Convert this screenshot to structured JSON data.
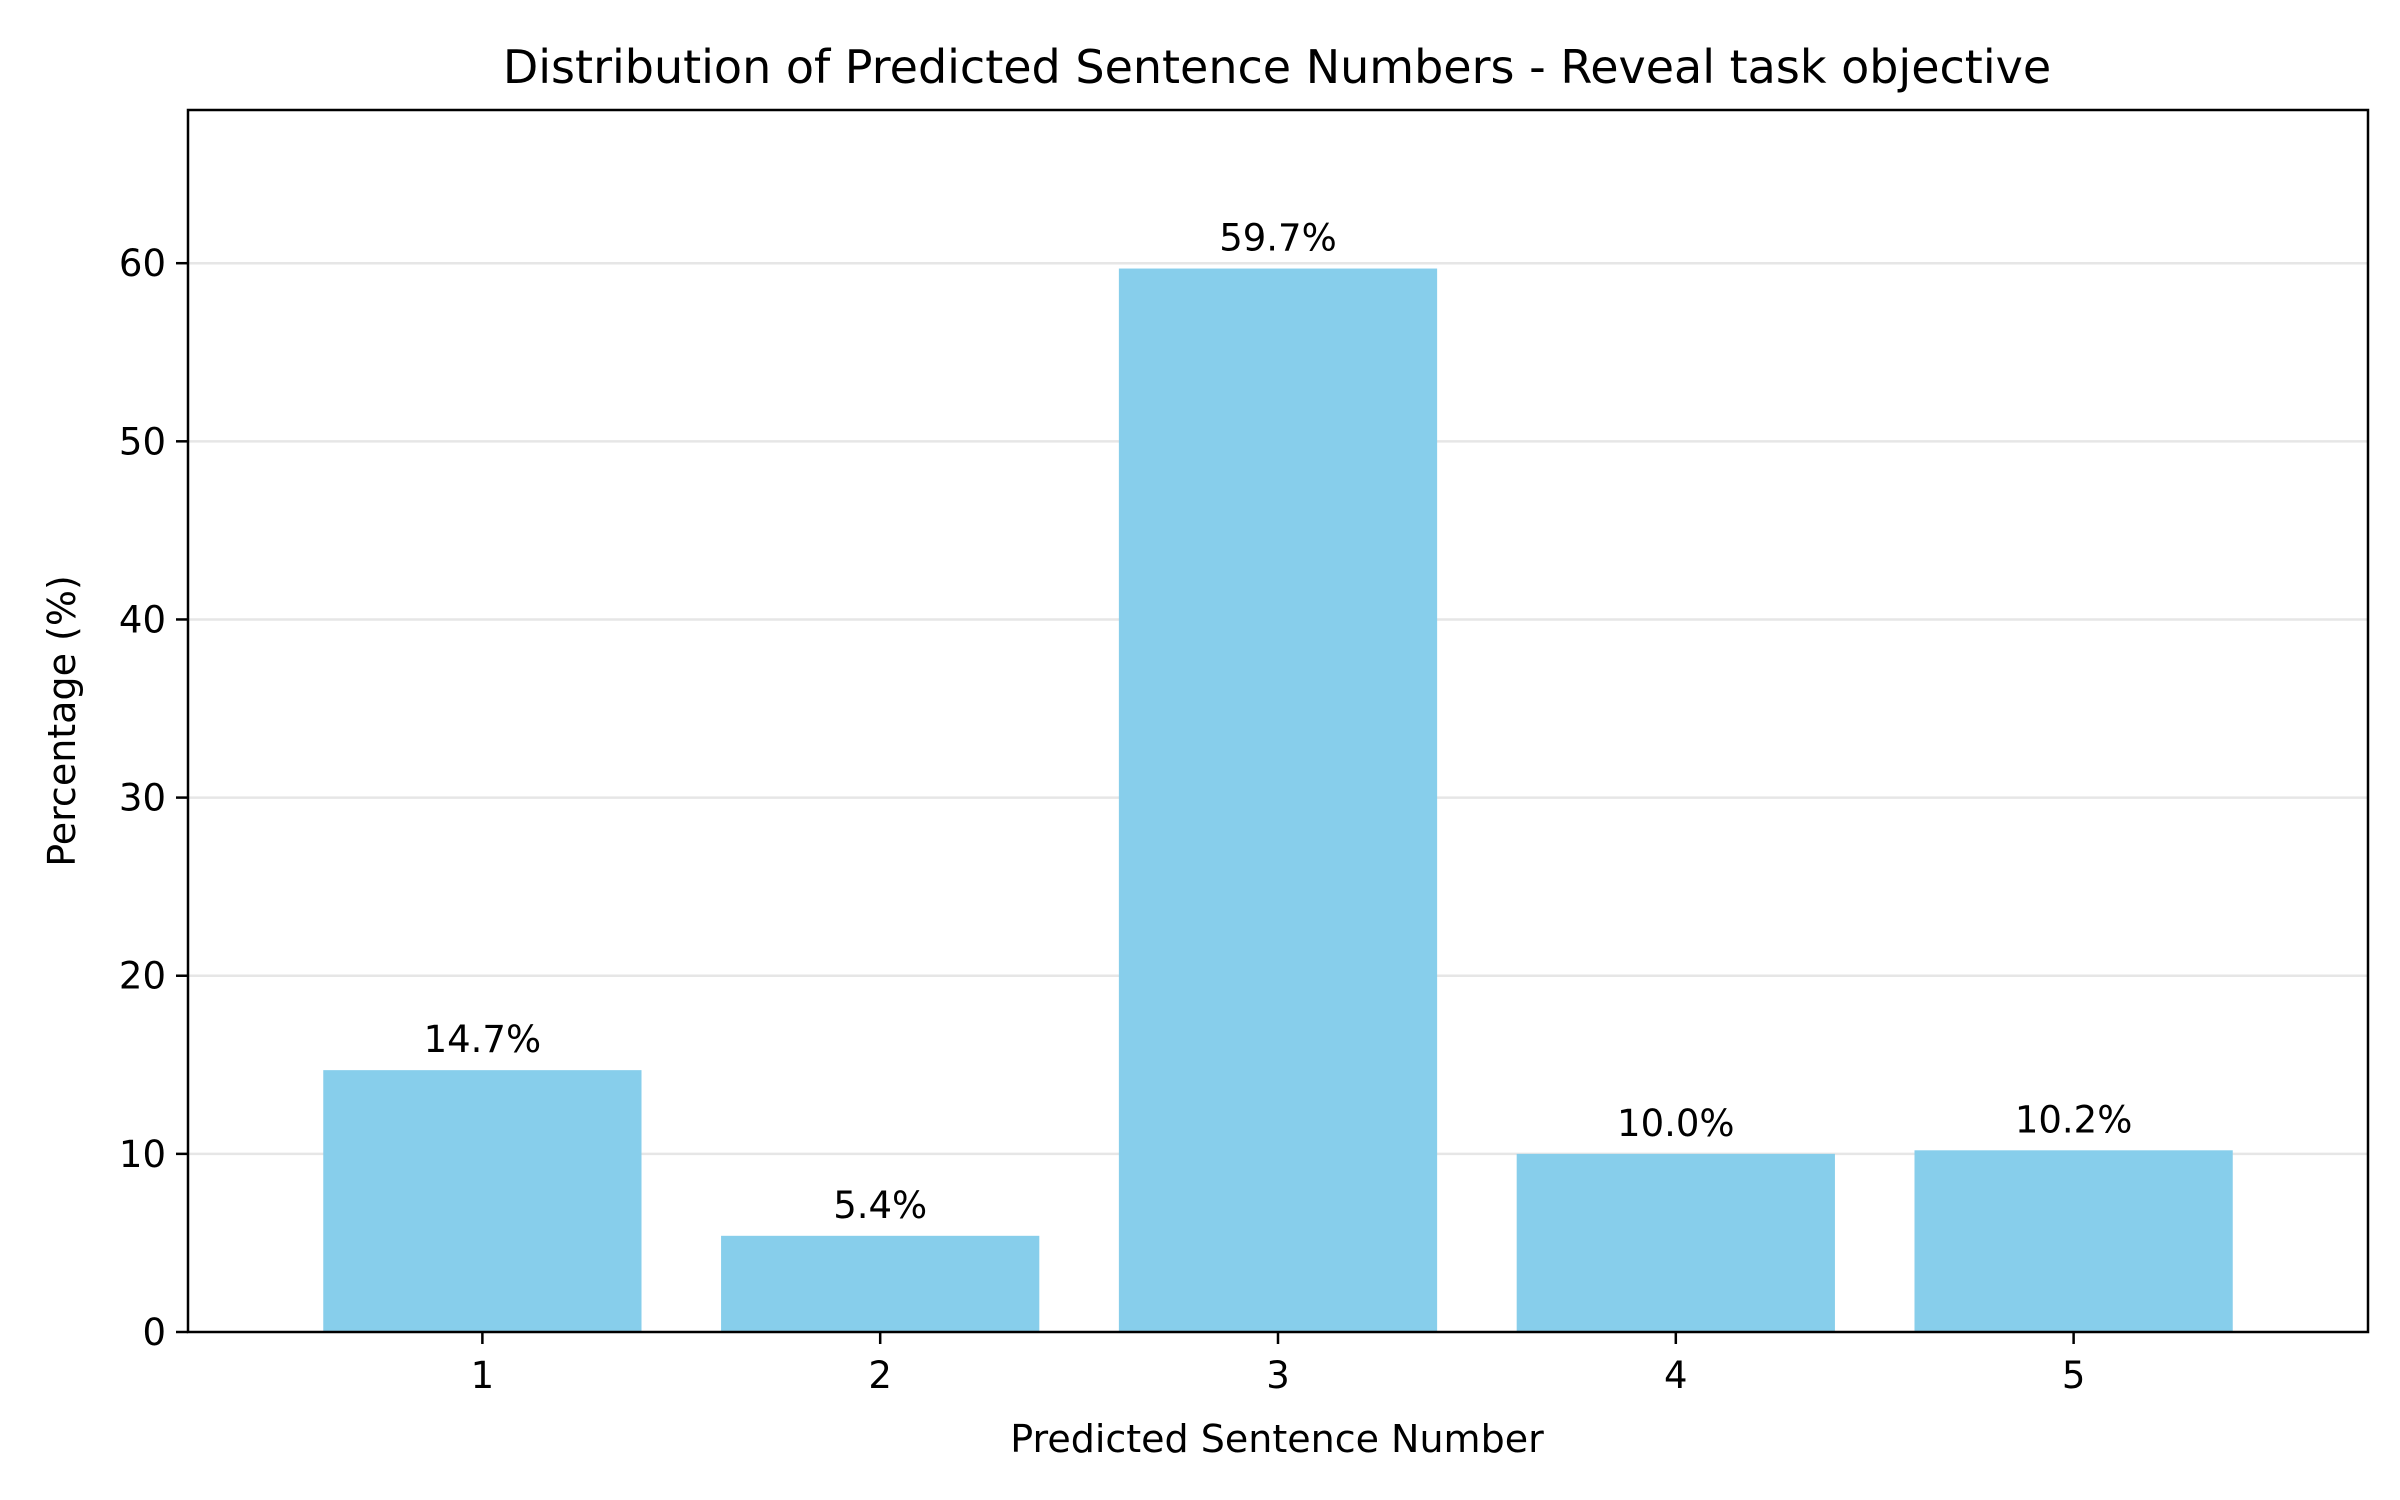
{
  "chart_data": {
    "type": "bar",
    "title": "Distribution of Predicted Sentence Numbers - Reveal task objective",
    "xlabel": "Predicted Sentence Number",
    "ylabel": "Percentage (%)",
    "categories": [
      "1",
      "2",
      "3",
      "4",
      "5"
    ],
    "values": [
      14.7,
      5.4,
      59.7,
      10.0,
      10.2
    ],
    "data_labels": [
      "14.7%",
      "5.4%",
      "59.7%",
      "10.0%",
      "10.2%"
    ],
    "ylim": [
      0,
      68.6
    ],
    "yticks": [
      0,
      10,
      20,
      30,
      40,
      50,
      60
    ],
    "grid": "y-axis horizontal gridlines",
    "legend": "none",
    "bar_color": "#87CEEB",
    "grid_color": "#e6e6e6"
  }
}
